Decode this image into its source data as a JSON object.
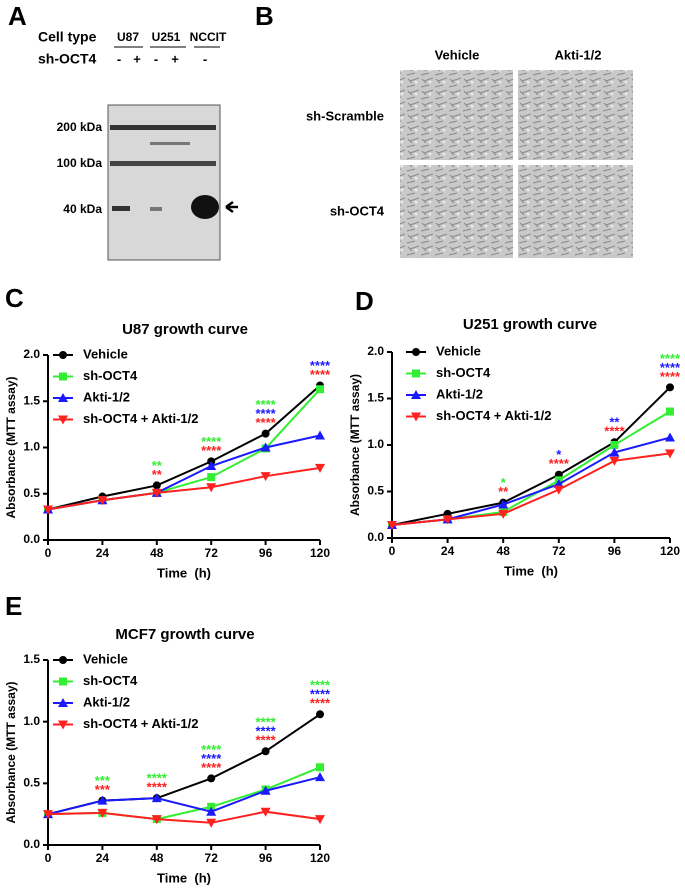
{
  "blot": {
    "panel_label": "A",
    "row1_label": "Cell type",
    "row2_label": "sh-OCT4",
    "cell_types": [
      "U87",
      "U251",
      "NCCIT"
    ],
    "sh_lanes": [
      "-",
      "+",
      "-",
      "+",
      "-"
    ],
    "markers": [
      "200 kDa",
      "100 kDa",
      "40 kDa"
    ]
  },
  "micrographs": {
    "panel_label": "B",
    "columns": [
      "Vehicle",
      "Akti-1/2"
    ],
    "rows": [
      "sh-Scramble",
      "sh-OCT4"
    ]
  },
  "chart_data": [
    {
      "type": "line",
      "panel_label": "C",
      "title": "U87 growth curve",
      "x_label": "Time  (h)",
      "y_label": "Absorbance (MTT assay)",
      "x": [
        0,
        24,
        48,
        72,
        96,
        120
      ],
      "xlim": [
        0,
        120
      ],
      "xticks": [
        0,
        24,
        48,
        72,
        96,
        120
      ],
      "ylim": [
        0,
        2
      ],
      "yticks": [
        {
          "value": 0,
          "label": "0.0"
        },
        0.5,
        {
          "value": 1,
          "label": "1.0"
        },
        1.5,
        {
          "value": 2,
          "label": "2.0"
        }
      ],
      "series": [
        {
          "name": "Vehicle",
          "color": "#000000",
          "marker": "circle",
          "values": [
            0.33,
            0.47,
            0.59,
            0.85,
            1.15,
            1.67
          ]
        },
        {
          "name": "sh-OCT4",
          "color": "#33ee33",
          "marker": "square",
          "values": [
            0.33,
            0.43,
            0.51,
            0.68,
            0.99,
            1.63
          ]
        },
        {
          "name": "Akti-1/2",
          "color": "#1a1aff",
          "marker": "triangle-up",
          "values": [
            0.33,
            0.43,
            0.51,
            0.8,
            1.0,
            1.13
          ]
        },
        {
          "name": "sh-OCT4 + Akti-1/2",
          "color": "#ff2020",
          "marker": "triangle-down",
          "values": [
            0.33,
            0.43,
            0.51,
            0.57,
            0.69,
            0.78
          ]
        }
      ],
      "annotations": [
        {
          "x": 48,
          "text": "**",
          "color": "#33ee33"
        },
        {
          "x": 48,
          "text": "**",
          "color": "#ff2020"
        },
        {
          "x": 72,
          "text": "****",
          "color": "#33ee33"
        },
        {
          "x": 72,
          "text": "****",
          "color": "#ff2020"
        },
        {
          "x": 96,
          "text": "****",
          "color": "#33ee33"
        },
        {
          "x": 96,
          "text": "****",
          "color": "#1a1aff"
        },
        {
          "x": 96,
          "text": "****",
          "color": "#ff2020"
        },
        {
          "x": 120,
          "text": "****",
          "color": "#1a1aff"
        },
        {
          "x": 120,
          "text": "****",
          "color": "#ff2020"
        }
      ]
    },
    {
      "type": "line",
      "panel_label": "D",
      "title": "U251 growth curve",
      "x_label": "Time  (h)",
      "y_label": "Absorbance (MTT assay)",
      "x": [
        0,
        24,
        48,
        72,
        96,
        120
      ],
      "xlim": [
        0,
        120
      ],
      "xticks": [
        0,
        24,
        48,
        72,
        96,
        120
      ],
      "ylim": [
        0,
        2
      ],
      "yticks": [
        {
          "value": 0,
          "label": "0.0"
        },
        0.5,
        {
          "value": 1,
          "label": "1.0"
        },
        1.5,
        {
          "value": 2,
          "label": "2.0"
        }
      ],
      "series": [
        {
          "name": "Vehicle",
          "color": "#000000",
          "marker": "circle",
          "values": [
            0.14,
            0.26,
            0.38,
            0.68,
            1.03,
            1.62
          ]
        },
        {
          "name": "sh-OCT4",
          "color": "#33ee33",
          "marker": "square",
          "values": [
            0.14,
            0.2,
            0.28,
            0.62,
            1.0,
            1.36
          ]
        },
        {
          "name": "Akti-1/2",
          "color": "#1a1aff",
          "marker": "triangle-up",
          "values": [
            0.14,
            0.2,
            0.36,
            0.58,
            0.92,
            1.08
          ]
        },
        {
          "name": "sh-OCT4 + Akti-1/2",
          "color": "#ff2020",
          "marker": "triangle-down",
          "values": [
            0.14,
            0.2,
            0.26,
            0.52,
            0.83,
            0.91
          ]
        }
      ],
      "annotations": [
        {
          "x": 48,
          "text": "*",
          "color": "#33ee33"
        },
        {
          "x": 48,
          "text": "**",
          "color": "#ff2020"
        },
        {
          "x": 72,
          "text": "*",
          "color": "#1a1aff"
        },
        {
          "x": 72,
          "text": "****",
          "color": "#ff2020"
        },
        {
          "x": 96,
          "text": "**",
          "color": "#1a1aff"
        },
        {
          "x": 96,
          "text": "****",
          "color": "#ff2020"
        },
        {
          "x": 120,
          "text": "****",
          "color": "#33ee33"
        },
        {
          "x": 120,
          "text": "****",
          "color": "#1a1aff"
        },
        {
          "x": 120,
          "text": "****",
          "color": "#ff2020"
        }
      ]
    },
    {
      "type": "line",
      "panel_label": "E",
      "title": "MCF7 growth curve",
      "x_label": "Time  (h)",
      "y_label": "Absorbance (MTT assay)",
      "x": [
        0,
        24,
        48,
        72,
        96,
        120
      ],
      "xlim": [
        0,
        120
      ],
      "xticks": [
        0,
        24,
        48,
        72,
        96,
        120
      ],
      "ylim": [
        0,
        1.5
      ],
      "yticks": [
        {
          "value": 0,
          "label": "0.0"
        },
        0.5,
        {
          "value": 1,
          "label": "1.0"
        },
        1.5
      ],
      "series": [
        {
          "name": "Vehicle",
          "color": "#000000",
          "marker": "circle",
          "values": [
            0.25,
            0.36,
            0.38,
            0.54,
            0.76,
            1.06
          ]
        },
        {
          "name": "sh-OCT4",
          "color": "#33ee33",
          "marker": "square",
          "values": [
            0.25,
            0.26,
            0.21,
            0.31,
            0.45,
            0.63
          ]
        },
        {
          "name": "Akti-1/2",
          "color": "#1a1aff",
          "marker": "triangle-up",
          "values": [
            0.25,
            0.36,
            0.38,
            0.27,
            0.44,
            0.55
          ]
        },
        {
          "name": "sh-OCT4 + Akti-1/2",
          "color": "#ff2020",
          "marker": "triangle-down",
          "values": [
            0.25,
            0.26,
            0.21,
            0.18,
            0.27,
            0.21
          ]
        }
      ],
      "annotations": [
        {
          "x": 24,
          "text": "***",
          "color": "#33ee33"
        },
        {
          "x": 24,
          "text": "***",
          "color": "#ff2020"
        },
        {
          "x": 48,
          "text": "****",
          "color": "#33ee33"
        },
        {
          "x": 48,
          "text": "****",
          "color": "#ff2020"
        },
        {
          "x": 72,
          "text": "****",
          "color": "#33ee33"
        },
        {
          "x": 72,
          "text": "****",
          "color": "#1a1aff"
        },
        {
          "x": 72,
          "text": "****",
          "color": "#ff2020"
        },
        {
          "x": 96,
          "text": "****",
          "color": "#33ee33"
        },
        {
          "x": 96,
          "text": "****",
          "color": "#1a1aff"
        },
        {
          "x": 96,
          "text": "****",
          "color": "#ff2020"
        },
        {
          "x": 120,
          "text": "****",
          "color": "#33ee33"
        },
        {
          "x": 120,
          "text": "****",
          "color": "#1a1aff"
        },
        {
          "x": 120,
          "text": "****",
          "color": "#ff2020"
        }
      ]
    }
  ]
}
